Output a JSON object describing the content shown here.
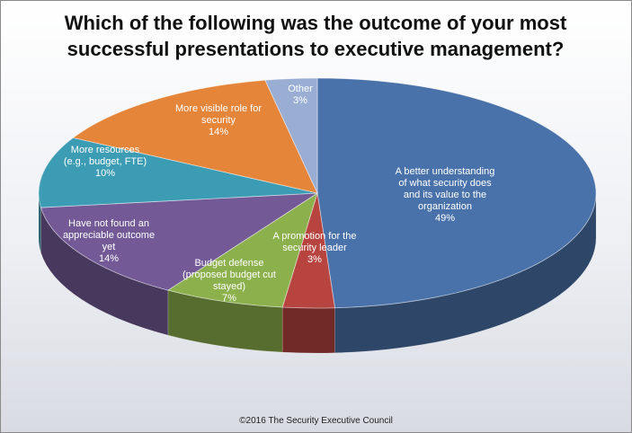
{
  "chart_data": {
    "type": "pie",
    "title_lines": [
      "Which of the following was the outcome of your most",
      "successful presentations to executive management?"
    ],
    "categories": [
      "A better understanding of what security does and its value to the organization",
      "A promotion for the security leader",
      "Budget defense (proposed budget cut stayed)",
      "Have not found an appreciable outcome yet",
      "More resources (e.g., budget, FTE)",
      "More visible role for security",
      "Other"
    ],
    "values": [
      49,
      3,
      7,
      14,
      10,
      14,
      3
    ],
    "label_lines": [
      [
        "A better understanding",
        "of what security does",
        "and its value to the",
        "organization",
        "49%"
      ],
      [
        "A promotion for the",
        "security leader",
        "3%"
      ],
      [
        "Budget defense",
        "(proposed budget cut",
        "stayed)",
        "7%"
      ],
      [
        "Have not found an",
        "appreciable outcome",
        "yet",
        "14%"
      ],
      [
        "More resources",
        "(e.g., budget,  FTE)",
        "10%"
      ],
      [
        "More visible role for",
        "security",
        "14%"
      ],
      [
        "Other",
        "3%"
      ]
    ],
    "colors": [
      "#4a72aa",
      "#b84440",
      "#8cb04c",
      "#735a96",
      "#3c9cb4",
      "#e5853a",
      "#9aaed4"
    ],
    "label_colors": [
      "#ffffff",
      "#ffffff",
      "#ffffff",
      "#ffffff",
      "#ffffff",
      "#ffffff",
      "#ffffff"
    ],
    "style": "3d-tilted"
  },
  "footer": {
    "copyright": "©2016 The Security Executive Council"
  }
}
